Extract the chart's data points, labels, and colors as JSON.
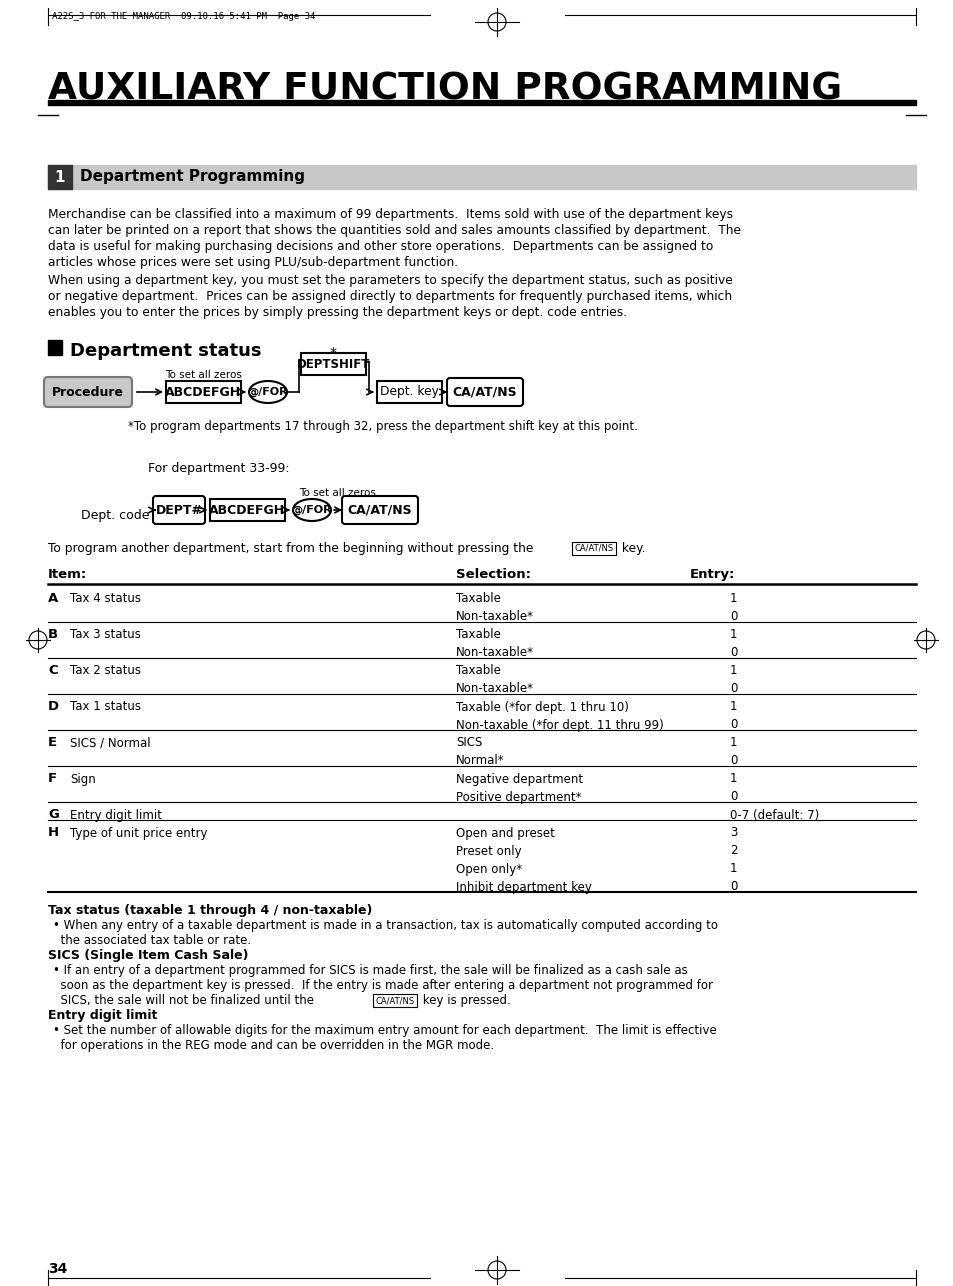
{
  "header_text": "A22S_3 FOR THE MANAGER  09.10.16 5:41 PM  Page 34",
  "main_title": "AUXILIARY FUNCTION PROGRAMMING",
  "section1_num": "1",
  "section1_title": "Department Programming",
  "body_text1_lines": [
    "Merchandise can be classified into a maximum of 99 departments.  Items sold with use of the department keys",
    "can later be printed on a report that shows the quantities sold and sales amounts classified by department.  The",
    "data is useful for making purchasing decisions and other store operations.  Departments can be assigned to",
    "articles whose prices were set using PLU/sub-department function."
  ],
  "body_text2_lines": [
    "When using a department key, you must set the parameters to specify the department status, such as positive",
    "or negative department.  Prices can be assigned directly to departments for frequently purchased items, which",
    "enables you to enter the prices by simply pressing the department keys or dept. code entries."
  ],
  "dept_status_title": "Department status",
  "proc_label": "Procedure",
  "note1": "*To program departments 17 through 32, press the department shift key at this point.",
  "dept3399_label": "For department 33-99:",
  "to_set_zeros": "To set all zeros",
  "to_set_zeros2": "To set all zeros",
  "dept_code_label": "Dept. code",
  "prog_another": "To program another department, start from the beginning without pressing the",
  "ca_atns_inline": "CA/AT/NS",
  "prog_another2": " key.",
  "table_headers": [
    "Item:",
    "Selection:",
    "Entry:"
  ],
  "table_rows": [
    [
      "A",
      "Tax 4 status",
      "Taxable",
      "1"
    ],
    [
      "",
      "",
      "Non-taxable*",
      "0"
    ],
    [
      "B",
      "Tax 3 status",
      "Taxable",
      "1"
    ],
    [
      "",
      "",
      "Non-taxable*",
      "0"
    ],
    [
      "C",
      "Tax 2 status",
      "Taxable",
      "1"
    ],
    [
      "",
      "",
      "Non-taxable*",
      "0"
    ],
    [
      "D",
      "Tax 1 status",
      "Taxable (*for dept. 1 thru 10)",
      "1"
    ],
    [
      "",
      "",
      "Non-taxable (*for dept. 11 thru 99)",
      "0"
    ],
    [
      "E",
      "SICS / Normal",
      "SICS",
      "1"
    ],
    [
      "",
      "",
      "Normal*",
      "0"
    ],
    [
      "F",
      "Sign",
      "Negative department",
      "1"
    ],
    [
      "",
      "",
      "Positive department*",
      "0"
    ],
    [
      "G",
      "Entry digit limit",
      "",
      "0-7 (default: 7)"
    ],
    [
      "H",
      "Type of unit price entry",
      "Open and preset",
      "3"
    ],
    [
      "",
      "",
      "Preset only",
      "2"
    ],
    [
      "",
      "",
      "Open only*",
      "1"
    ],
    [
      "",
      "",
      "Inhibit department key",
      "0"
    ]
  ],
  "bottom_bold1": "Tax status (taxable 1 through 4 / non-taxable)",
  "bottom_text1a": "• When any entry of a taxable department is made in a transaction, tax is automatically computed according to",
  "bottom_text1b": "  the associated tax table or rate.",
  "bottom_bold2": "SICS (Single Item Cash Sale)",
  "bottom_text2a": "• If an entry of a department programmed for SICS is made first, the sale will be finalized as a cash sale as",
  "bottom_text2b": "  soon as the department key is pressed.  If the entry is made after entering a department not programmed for",
  "bottom_text2c": "  SICS, the sale will not be finalized until the",
  "ca_atns_inline2": "CA/AT/NS",
  "bottom_text2d": " key is pressed.",
  "bottom_bold3": "Entry digit limit",
  "bottom_text3a": "• Set the number of allowable digits for the maximum entry amount for each department.  The limit is effective",
  "bottom_text3b": "  for operations in the REG mode and can be overridden in the MGR mode.",
  "page_num": "34",
  "bg_color": "#ffffff"
}
